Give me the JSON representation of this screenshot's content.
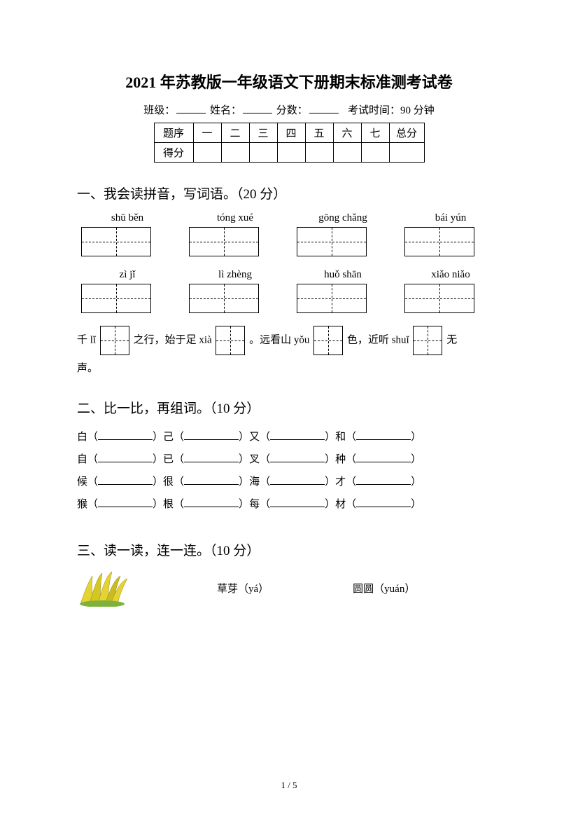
{
  "title": "2021 年苏教版一年级语文下册期末标准测考试卷",
  "info": {
    "class_label": "班级：",
    "name_label": "姓名：",
    "score_label": "分数：",
    "exam_time": "考试时间：90 分钟"
  },
  "score_table": {
    "row1": [
      "题序",
      "一",
      "二",
      "三",
      "四",
      "五",
      "六",
      "七",
      "总分"
    ],
    "row2_label": "得分"
  },
  "q1": {
    "title": "一、我会读拼音，写词语。（20 分）",
    "pinyin_row1": [
      "shū běn",
      "tóng xué",
      "gōng chǎng",
      "bái yún"
    ],
    "pinyin_row2": [
      "zì jǐ",
      "lì zhèng",
      "huǒ shān",
      "xiǎo niǎo"
    ],
    "sentence_parts": {
      "p1": "千 lǐ",
      "p2": "之行，始于足 xià",
      "p3": "。远看山 yǒu",
      "p4": "色，近听 shuǐ",
      "p5": "无",
      "p6": "声。"
    }
  },
  "q2": {
    "title": "二、比一比，再组词。（10 分）",
    "lines": [
      [
        "白",
        "己",
        "又",
        "和"
      ],
      [
        "自",
        "已",
        "叉",
        "种"
      ],
      [
        "候",
        "很",
        "海",
        "才"
      ],
      [
        "猴",
        "根",
        "每",
        "材"
      ]
    ]
  },
  "q3": {
    "title": "三、读一读，连一连。（10 分）",
    "item1": "草芽（yá）",
    "item2": "圆圆（yuán）"
  },
  "page_num": "1 / 5",
  "colors": {
    "text": "#000000",
    "bg": "#ffffff",
    "grass_yellow": "#e6d232",
    "grass_dark": "#8a8a1a",
    "grass_green": "#7fb23a"
  }
}
